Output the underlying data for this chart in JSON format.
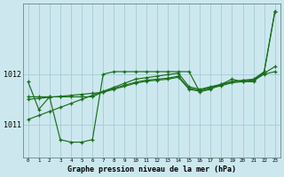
{
  "title": "Graphe pression niveau de la mer (hPa)",
  "bg_color": "#cce8ee",
  "grid_color": "#aacfd8",
  "line_color": "#1a6e1a",
  "ylabel_ticks": [
    1011,
    1012
  ],
  "xticks": [
    0,
    1,
    2,
    3,
    4,
    5,
    6,
    7,
    8,
    9,
    10,
    11,
    12,
    13,
    14,
    15,
    16,
    17,
    18,
    19,
    20,
    21,
    22,
    23
  ],
  "ylim": [
    1010.35,
    1013.4
  ],
  "xlim": [
    -0.5,
    23.5
  ],
  "series_jagged": [
    1011.85,
    1011.3,
    1011.55,
    1010.7,
    1010.65,
    1010.65,
    1010.7,
    1012.0,
    1012.05,
    1012.05,
    1012.05,
    1012.05,
    1012.05,
    1012.05,
    1012.05,
    1012.05,
    1011.65,
    1011.7,
    1011.8,
    1011.9,
    1011.85,
    1011.85,
    1012.05,
    1013.25
  ],
  "series_diag": [
    1011.1,
    1011.18,
    1011.26,
    1011.34,
    1011.42,
    1011.5,
    1011.58,
    1011.66,
    1011.74,
    1011.82,
    1011.9,
    1011.93,
    1011.96,
    1011.99,
    1012.02,
    1011.75,
    1011.7,
    1011.75,
    1011.8,
    1011.85,
    1011.88,
    1011.9,
    1012.05,
    1013.25
  ],
  "series_mid1": [
    1011.55,
    1011.55,
    1011.55,
    1011.55,
    1011.55,
    1011.55,
    1011.55,
    1011.65,
    1011.72,
    1011.78,
    1011.84,
    1011.88,
    1011.9,
    1011.92,
    1011.96,
    1011.72,
    1011.68,
    1011.74,
    1011.79,
    1011.85,
    1011.87,
    1011.89,
    1012.02,
    1012.15
  ],
  "series_mid2": [
    1011.5,
    1011.52,
    1011.54,
    1011.56,
    1011.58,
    1011.6,
    1011.62,
    1011.64,
    1011.7,
    1011.76,
    1011.82,
    1011.86,
    1011.88,
    1011.9,
    1011.94,
    1011.7,
    1011.66,
    1011.72,
    1011.77,
    1011.83,
    1011.85,
    1011.87,
    1012.0,
    1012.05
  ]
}
